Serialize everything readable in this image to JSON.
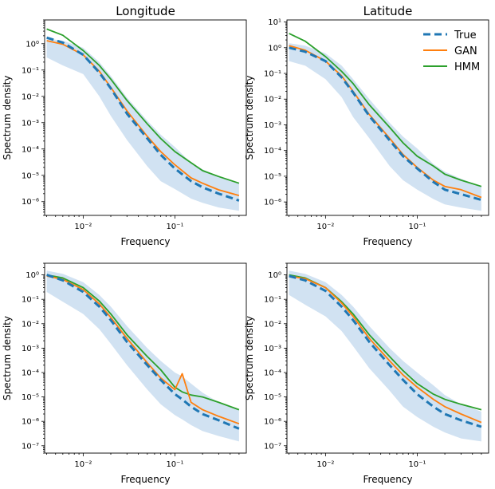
{
  "colors": {
    "true": "#1f77b4",
    "gan": "#ff7f0e",
    "hmm": "#2ca02c",
    "band": "#c6dbef"
  },
  "legend": {
    "true": "True",
    "gan": "GAN",
    "hmm": "HMM"
  },
  "chart_data": [
    {
      "type": "line",
      "title": "Longitude",
      "xlabel": "Frequency",
      "ylabel": "Spectrum density",
      "xscale": "log",
      "yscale": "log",
      "xlim": [
        0.0038,
        0.6
      ],
      "ylim": [
        3e-07,
        8
      ],
      "yticks": [
        {
          "v": 1e-06,
          "l": "10⁻⁶"
        },
        {
          "v": 1e-05,
          "l": "10⁻⁵"
        },
        {
          "v": 0.0001,
          "l": "10⁻⁴"
        },
        {
          "v": 0.001,
          "l": "10⁻³"
        },
        {
          "v": 0.01,
          "l": "10⁻²"
        },
        {
          "v": 0.1,
          "l": "10⁻¹"
        },
        {
          "v": 1,
          "l": "10⁰"
        }
      ],
      "xticks": [
        {
          "v": 0.01,
          "l": "10⁻²"
        },
        {
          "v": 0.1,
          "l": "10⁻¹"
        }
      ],
      "x": [
        0.004,
        0.006,
        0.01,
        0.015,
        0.02,
        0.03,
        0.05,
        0.07,
        0.1,
        0.15,
        0.2,
        0.3,
        0.5
      ],
      "band_low": [
        0.3,
        0.15,
        0.07,
        0.01,
        0.0018,
        0.00022,
        2.2e-05,
        6e-06,
        3e-06,
        1.3e-06,
        9e-07,
        6e-07,
        4.5e-07
      ],
      "band_high": [
        1.6,
        1.3,
        0.7,
        0.2,
        0.06,
        0.009,
        0.0012,
        0.00035,
        0.00012,
        3e-05,
        1.7e-05,
        9e-06,
        5e-06
      ],
      "series": [
        {
          "name": "True",
          "key": "true",
          "values": [
            1.7,
            1.1,
            0.38,
            0.08,
            0.02,
            0.0022,
            0.00025,
            6e-05,
            1.8e-05,
            6e-06,
            3.5e-06,
            2e-06,
            1.1e-06
          ]
        },
        {
          "name": "GAN",
          "key": "gan",
          "values": [
            1.3,
            0.95,
            0.38,
            0.09,
            0.022,
            0.0028,
            0.0003,
            8e-05,
            2.5e-05,
            8e-06,
            5e-06,
            2.8e-06,
            1.7e-06
          ]
        },
        {
          "name": "HMM",
          "key": "hmm",
          "values": [
            3.6,
            2.1,
            0.55,
            0.15,
            0.045,
            0.007,
            0.0009,
            0.00025,
            8e-05,
            3e-05,
            1.5e-05,
            9e-06,
            5e-06
          ]
        }
      ]
    },
    {
      "type": "line",
      "title": "Latitude",
      "xlabel": "Frequency",
      "ylabel": "Spectrum density",
      "xscale": "log",
      "yscale": "log",
      "xlim": [
        0.0038,
        0.6
      ],
      "ylim": [
        3e-07,
        12
      ],
      "yticks": [
        {
          "v": 1e-06,
          "l": "10⁻⁶"
        },
        {
          "v": 1e-05,
          "l": "10⁻⁵"
        },
        {
          "v": 0.0001,
          "l": "10⁻⁴"
        },
        {
          "v": 0.001,
          "l": "10⁻³"
        },
        {
          "v": 0.01,
          "l": "10⁻²"
        },
        {
          "v": 0.1,
          "l": "10⁻¹"
        },
        {
          "v": 1,
          "l": "10⁰"
        },
        {
          "v": 10,
          "l": "10¹"
        }
      ],
      "xticks": [
        {
          "v": 0.01,
          "l": "10⁻²"
        },
        {
          "v": 0.1,
          "l": "10⁻¹"
        }
      ],
      "legend_position": "top-right",
      "x": [
        0.004,
        0.006,
        0.01,
        0.015,
        0.02,
        0.03,
        0.05,
        0.07,
        0.1,
        0.15,
        0.2,
        0.3,
        0.5
      ],
      "band_low": [
        0.3,
        0.2,
        0.06,
        0.012,
        0.002,
        0.0003,
        2.5e-05,
        7e-06,
        3e-06,
        1.3e-06,
        8e-07,
        6e-07,
        4.5e-07
      ],
      "band_high": [
        1.5,
        1.2,
        0.6,
        0.2,
        0.06,
        0.01,
        0.0012,
        0.00035,
        0.00012,
        3e-05,
        1.5e-05,
        8e-06,
        4e-06
      ],
      "series": [
        {
          "name": "True",
          "key": "true",
          "values": [
            1.0,
            0.7,
            0.3,
            0.07,
            0.018,
            0.0022,
            0.00025,
            6e-05,
            2e-05,
            6e-06,
            3e-06,
            2e-06,
            1.2e-06
          ]
        },
        {
          "name": "GAN",
          "key": "gan",
          "values": [
            1.2,
            0.8,
            0.3,
            0.08,
            0.02,
            0.0025,
            0.0003,
            7e-05,
            2.2e-05,
            7e-06,
            4e-06,
            3e-06,
            1.5e-06
          ]
        },
        {
          "name": "HMM",
          "key": "hmm",
          "values": [
            3.6,
            1.8,
            0.45,
            0.12,
            0.04,
            0.006,
            0.0008,
            0.0002,
            6e-05,
            2.5e-05,
            1.2e-05,
            7e-06,
            4e-06
          ]
        }
      ]
    },
    {
      "type": "line",
      "title": "",
      "xlabel": "Frequency",
      "ylabel": "Spectrum density",
      "xscale": "log",
      "yscale": "log",
      "xlim": [
        0.0038,
        0.6
      ],
      "ylim": [
        5e-08,
        3
      ],
      "yticks": [
        {
          "v": 1e-07,
          "l": "10⁻⁷"
        },
        {
          "v": 1e-06,
          "l": "10⁻⁶"
        },
        {
          "v": 1e-05,
          "l": "10⁻⁵"
        },
        {
          "v": 0.0001,
          "l": "10⁻⁴"
        },
        {
          "v": 0.001,
          "l": "10⁻³"
        },
        {
          "v": 0.01,
          "l": "10⁻²"
        },
        {
          "v": 0.1,
          "l": "10⁻¹"
        },
        {
          "v": 1,
          "l": "10⁰"
        }
      ],
      "xticks": [
        {
          "v": 0.01,
          "l": "10⁻²"
        },
        {
          "v": 0.1,
          "l": "10⁻¹"
        }
      ],
      "x": [
        0.004,
        0.006,
        0.01,
        0.015,
        0.02,
        0.03,
        0.05,
        0.07,
        0.1,
        0.12,
        0.15,
        0.2,
        0.3,
        0.5
      ],
      "band_low": [
        0.2,
        0.08,
        0.025,
        0.006,
        0.0015,
        0.0002,
        2e-05,
        5e-06,
        1.8e-06,
        1.2e-06,
        7e-07,
        4e-07,
        2.5e-07,
        1.5e-07
      ],
      "band_high": [
        1.5,
        1.1,
        0.5,
        0.15,
        0.05,
        0.008,
        0.001,
        0.0003,
        0.0001,
        7e-05,
        3.5e-05,
        1.5e-05,
        6e-06,
        3e-06
      ],
      "series": [
        {
          "name": "True",
          "key": "true",
          "values": [
            1.0,
            0.6,
            0.2,
            0.05,
            0.014,
            0.0018,
            0.0002,
            5e-05,
            1.3e-05,
            8e-06,
            4e-06,
            2e-06,
            1.1e-06,
            5e-07
          ]
        },
        {
          "name": "GAN",
          "key": "gan",
          "values": [
            0.9,
            0.65,
            0.25,
            0.065,
            0.018,
            0.0025,
            0.00025,
            6e-05,
            2e-05,
            9e-05,
            6e-06,
            3e-06,
            1.6e-06,
            8e-07
          ]
        },
        {
          "name": "HMM",
          "key": "hmm",
          "values": [
            1.0,
            0.75,
            0.3,
            0.085,
            0.025,
            0.0035,
            0.00045,
            0.00013,
            2.5e-05,
            1.6e-05,
            1.2e-05,
            1e-05,
            6e-06,
            3e-06
          ]
        }
      ]
    },
    {
      "type": "line",
      "title": "",
      "xlabel": "Frequency",
      "ylabel": "Spectrum density",
      "xscale": "log",
      "yscale": "log",
      "xlim": [
        0.0038,
        0.6
      ],
      "ylim": [
        5e-08,
        3
      ],
      "yticks": [
        {
          "v": 1e-07,
          "l": "10⁻⁷"
        },
        {
          "v": 1e-06,
          "l": "10⁻⁶"
        },
        {
          "v": 1e-05,
          "l": "10⁻⁵"
        },
        {
          "v": 0.0001,
          "l": "10⁻⁴"
        },
        {
          "v": 0.001,
          "l": "10⁻³"
        },
        {
          "v": 0.01,
          "l": "10⁻²"
        },
        {
          "v": 0.1,
          "l": "10⁻¹"
        },
        {
          "v": 1,
          "l": "10⁰"
        }
      ],
      "xticks": [
        {
          "v": 0.01,
          "l": "10⁻²"
        },
        {
          "v": 0.1,
          "l": "10⁻¹"
        }
      ],
      "x": [
        0.004,
        0.006,
        0.01,
        0.015,
        0.02,
        0.03,
        0.05,
        0.07,
        0.1,
        0.15,
        0.2,
        0.3,
        0.5
      ],
      "band_low": [
        0.15,
        0.06,
        0.02,
        0.005,
        0.0012,
        0.00015,
        1.8e-05,
        4e-06,
        1.5e-06,
        6e-07,
        3.5e-07,
        2e-07,
        1.5e-07
      ],
      "band_high": [
        1.5,
        1.1,
        0.5,
        0.15,
        0.05,
        0.008,
        0.001,
        0.0003,
        0.0001,
        3e-05,
        1.2e-05,
        5e-06,
        2.5e-06
      ],
      "series": [
        {
          "name": "True",
          "key": "true",
          "values": [
            0.9,
            0.6,
            0.22,
            0.05,
            0.014,
            0.0018,
            0.0002,
            5e-05,
            1.3e-05,
            4e-06,
            2e-06,
            1.1e-06,
            6e-07
          ]
        },
        {
          "name": "GAN",
          "key": "gan",
          "values": [
            0.9,
            0.7,
            0.3,
            0.07,
            0.02,
            0.0025,
            0.0003,
            8e-05,
            2.5e-05,
            8e-06,
            4e-06,
            2e-06,
            9e-07
          ]
        },
        {
          "name": "HMM",
          "key": "hmm",
          "values": [
            1.0,
            0.75,
            0.3,
            0.08,
            0.025,
            0.0035,
            0.00045,
            0.00012,
            3.5e-05,
            1.3e-05,
            8e-06,
            5e-06,
            3e-06
          ]
        }
      ]
    }
  ]
}
